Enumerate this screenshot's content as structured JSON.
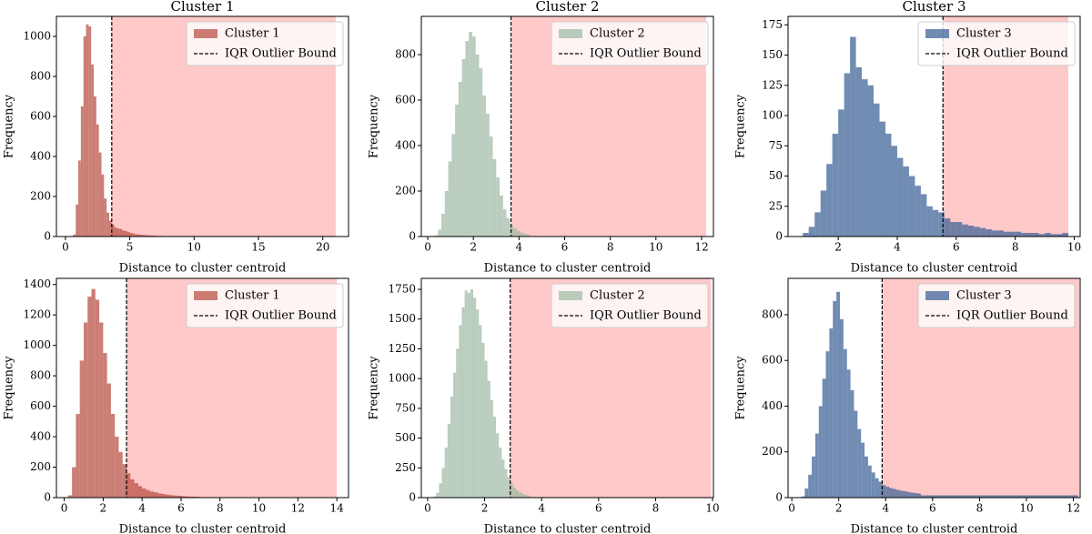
{
  "chart_data": [
    {
      "type": "histogram",
      "title": "Cluster 1",
      "xlabel": "Distance to cluster centroid",
      "ylabel": "Frequency",
      "xlim": [
        -0.7,
        22.0
      ],
      "ylim": [
        0,
        1100
      ],
      "xticks": [
        0,
        5,
        10,
        15,
        20
      ],
      "yticks": [
        0,
        200,
        400,
        600,
        800,
        1000
      ],
      "legend": "upper right",
      "series": [
        {
          "name": "Cluster 1",
          "color": "#b5473a",
          "alpha": 0.7,
          "bins": [
            0.6,
            0.8,
            1.0,
            1.2,
            1.4,
            1.6,
            1.8,
            2.0,
            2.2,
            2.4,
            2.6,
            2.8,
            3.0,
            3.2,
            3.4,
            3.6,
            3.8,
            4.0,
            4.2,
            4.4,
            4.6,
            4.8,
            5.0,
            5.2,
            5.4,
            5.6,
            5.8,
            6.0,
            6.2,
            6.4,
            6.6,
            6.8,
            7.0,
            7.2,
            7.4,
            7.6,
            7.8,
            8.0,
            21.0
          ],
          "counts": [
            10,
            160,
            380,
            650,
            1000,
            1060,
            1050,
            860,
            700,
            560,
            420,
            310,
            190,
            120,
            80,
            60,
            45,
            40,
            38,
            30,
            28,
            22,
            18,
            15,
            12,
            10,
            9,
            8,
            7,
            6,
            5,
            5,
            4,
            3,
            3,
            2,
            2,
            3
          ]
        }
      ],
      "bound": {
        "name": "IQR Outlier Bound",
        "value": 3.6,
        "color": "#000000"
      },
      "outlier_region": {
        "color": "#ffc9c9",
        "end": 21.0
      }
    },
    {
      "type": "histogram",
      "title": "Cluster 2",
      "xlabel": "Distance to cluster centroid",
      "ylabel": "Frequency",
      "xlim": [
        -0.28,
        12.52
      ],
      "ylim": [
        0,
        968
      ],
      "xticks": [
        0,
        2,
        4,
        6,
        8,
        10,
        12
      ],
      "yticks": [
        0,
        200,
        400,
        600,
        800
      ],
      "legend": "upper right",
      "series": [
        {
          "name": "Cluster 2",
          "color": "#9db8a3",
          "alpha": 0.7,
          "bins": [
            0.3,
            0.45,
            0.6,
            0.75,
            0.9,
            1.05,
            1.2,
            1.35,
            1.5,
            1.65,
            1.8,
            1.95,
            2.1,
            2.25,
            2.4,
            2.55,
            2.7,
            2.85,
            3.0,
            3.15,
            3.3,
            3.45,
            3.6,
            3.75,
            3.9,
            4.05,
            4.2,
            4.35,
            4.5,
            12.2
          ],
          "counts": [
            5,
            30,
            100,
            200,
            330,
            450,
            580,
            680,
            780,
            860,
            900,
            880,
            800,
            740,
            620,
            540,
            440,
            340,
            260,
            180,
            120,
            80,
            50,
            35,
            25,
            18,
            12,
            8,
            2
          ]
        }
      ],
      "bound": {
        "name": "IQR Outlier Bound",
        "value": 3.65,
        "color": "#000000"
      },
      "outlier_region": {
        "color": "#ffc9c9",
        "end": 12.2
      }
    },
    {
      "type": "histogram",
      "title": "Cluster 3",
      "xlabel": "Distance to cluster centroid",
      "ylabel": "Frequency",
      "xlim": [
        0.3,
        10.2
      ],
      "ylim": [
        0,
        182
      ],
      "xticks": [
        2,
        4,
        6,
        8,
        10
      ],
      "yticks": [
        0,
        25,
        50,
        75,
        100,
        125,
        150,
        175
      ],
      "legend": "upper right",
      "series": [
        {
          "name": "Cluster 3",
          "color": "#3a5f96",
          "alpha": 0.72,
          "bins": [
            0.8,
            1.0,
            1.2,
            1.4,
            1.6,
            1.8,
            2.0,
            2.2,
            2.4,
            2.6,
            2.8,
            3.0,
            3.2,
            3.4,
            3.6,
            3.8,
            4.0,
            4.2,
            4.4,
            4.6,
            4.8,
            5.0,
            5.2,
            5.4,
            5.6,
            5.8,
            6.0,
            6.2,
            6.4,
            6.6,
            6.8,
            7.0,
            7.2,
            7.4,
            7.6,
            7.8,
            8.0,
            8.2,
            8.4,
            8.6,
            8.8,
            9.0,
            9.2,
            9.4,
            9.6,
            9.8
          ],
          "counts": [
            3,
            8,
            20,
            38,
            60,
            85,
            105,
            135,
            165,
            140,
            130,
            125,
            110,
            95,
            85,
            75,
            65,
            58,
            50,
            42,
            35,
            25,
            22,
            20,
            15,
            12,
            12,
            10,
            9,
            8,
            7,
            6,
            5,
            5,
            4,
            4,
            4,
            3,
            3,
            3,
            2,
            3,
            2,
            2,
            3
          ]
        }
      ],
      "bound": {
        "name": "IQR Outlier Bound",
        "value": 5.55,
        "color": "#000000"
      },
      "outlier_region": {
        "color": "#ffc9c9",
        "end": 9.8
      }
    },
    {
      "type": "histogram",
      "xlabel": "Distance to cluster centroid",
      "ylabel": "Frequency",
      "xlim": [
        -0.4,
        14.6
      ],
      "ylim": [
        0,
        1440
      ],
      "xticks": [
        0,
        2,
        4,
        6,
        8,
        10,
        12,
        14
      ],
      "yticks": [
        0,
        200,
        400,
        600,
        800,
        1000,
        1200,
        1400
      ],
      "legend": "upper right",
      "series": [
        {
          "name": "Cluster 1",
          "color": "#b5473a",
          "alpha": 0.7,
          "bins": [
            0.2,
            0.4,
            0.6,
            0.8,
            1.0,
            1.2,
            1.4,
            1.6,
            1.8,
            2.0,
            2.2,
            2.4,
            2.6,
            2.8,
            3.0,
            3.2,
            3.4,
            3.6,
            3.8,
            4.0,
            4.2,
            4.4,
            4.6,
            4.8,
            5.0,
            5.2,
            5.4,
            5.6,
            5.8,
            6.0,
            6.2,
            6.4,
            6.6,
            6.8,
            7.0,
            14.0
          ],
          "counts": [
            15,
            200,
            550,
            900,
            1150,
            1320,
            1370,
            1300,
            1150,
            950,
            750,
            550,
            400,
            300,
            220,
            160,
            120,
            95,
            75,
            60,
            50,
            40,
            35,
            28,
            24,
            20,
            16,
            14,
            12,
            10,
            8,
            7,
            6,
            5,
            3
          ]
        }
      ],
      "bound": {
        "name": "IQR Outlier Bound",
        "value": 3.2,
        "color": "#000000"
      },
      "outlier_region": {
        "color": "#ffc9c9",
        "end": 14.0
      }
    },
    {
      "type": "histogram",
      "xlabel": "Distance to cluster centroid",
      "ylabel": "Frequency",
      "xlim": [
        -0.22,
        10.03
      ],
      "ylim": [
        0,
        1842
      ],
      "xticks": [
        0,
        2,
        4,
        6,
        8,
        10
      ],
      "yticks": [
        0,
        250,
        500,
        750,
        1000,
        1250,
        1500,
        1750
      ],
      "legend": "upper right",
      "series": [
        {
          "name": "Cluster 2",
          "color": "#9db8a3",
          "alpha": 0.7,
          "bins": [
            0.2,
            0.3,
            0.4,
            0.5,
            0.6,
            0.7,
            0.8,
            0.9,
            1.0,
            1.1,
            1.2,
            1.3,
            1.4,
            1.5,
            1.6,
            1.7,
            1.8,
            1.9,
            2.0,
            2.1,
            2.2,
            2.3,
            2.4,
            2.5,
            2.6,
            2.7,
            2.8,
            2.9,
            3.0,
            3.1,
            3.2,
            3.3,
            3.4,
            3.5,
            3.6,
            9.95
          ],
          "counts": [
            10,
            40,
            120,
            250,
            420,
            620,
            850,
            1050,
            1250,
            1450,
            1600,
            1740,
            1720,
            1750,
            1680,
            1580,
            1450,
            1300,
            1150,
            980,
            820,
            680,
            540,
            420,
            320,
            240,
            170,
            120,
            85,
            60,
            45,
            32,
            24,
            18,
            5
          ]
        }
      ],
      "bound": {
        "name": "IQR Outlier Bound",
        "value": 2.9,
        "color": "#000000"
      },
      "outlier_region": {
        "color": "#ffc9c9",
        "end": 9.95
      }
    },
    {
      "type": "histogram",
      "xlabel": "Distance to cluster centroid",
      "ylabel": "Frequency",
      "xlim": [
        -0.16,
        12.29
      ],
      "ylim": [
        0,
        959
      ],
      "xticks": [
        0,
        2,
        4,
        6,
        8,
        10,
        12
      ],
      "yticks": [
        0,
        200,
        400,
        600,
        800
      ],
      "legend": "upper right",
      "series": [
        {
          "name": "Cluster 3",
          "color": "#3a5f96",
          "alpha": 0.72,
          "bins": [
            0.4,
            0.55,
            0.7,
            0.85,
            1.0,
            1.15,
            1.3,
            1.45,
            1.6,
            1.75,
            1.9,
            2.05,
            2.2,
            2.35,
            2.5,
            2.65,
            2.8,
            2.95,
            3.1,
            3.25,
            3.4,
            3.55,
            3.7,
            3.85,
            4.0,
            4.15,
            4.3,
            4.45,
            4.6,
            4.75,
            4.9,
            5.05,
            5.2,
            5.35,
            5.5,
            12.2
          ],
          "counts": [
            5,
            40,
            100,
            180,
            280,
            400,
            520,
            640,
            740,
            860,
            900,
            780,
            650,
            560,
            470,
            380,
            300,
            240,
            180,
            140,
            110,
            85,
            70,
            55,
            48,
            42,
            38,
            34,
            30,
            28,
            25,
            22,
            20,
            18,
            10
          ]
        }
      ],
      "bound": {
        "name": "IQR Outlier Bound",
        "value": 3.85,
        "color": "#000000"
      },
      "outlier_region": {
        "color": "#ffc9c9",
        "end": 12.25
      }
    }
  ]
}
